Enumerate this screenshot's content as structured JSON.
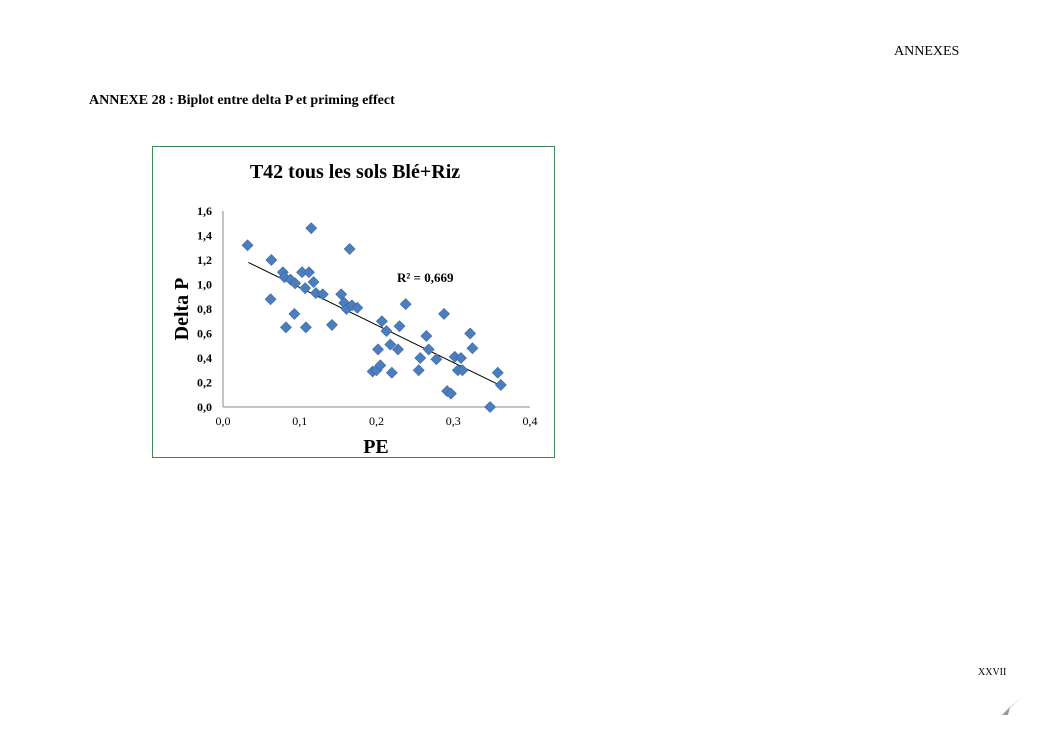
{
  "page": {
    "header": "ANNEXES",
    "annex_title": "ANNEXE 28 : Biplot entre delta P et priming effect",
    "page_number": "XXVII"
  },
  "colors": {
    "frame": "#3d8a58",
    "marker": "#4a7ebf",
    "trendline": "#000000"
  },
  "chart_data": {
    "type": "scatter",
    "title": "T42 tous les sols Blé+Riz",
    "xlabel": "PE",
    "ylabel": "Delta P",
    "xlim": [
      0,
      0.4
    ],
    "ylim": [
      0,
      1.6
    ],
    "xticks": [
      "0,0",
      "0,1",
      "0,2",
      "0,3",
      "0,4"
    ],
    "yticks": [
      "0,0",
      "0,2",
      "0,4",
      "0,6",
      "0,8",
      "1,0",
      "1,2",
      "1,4",
      "1,6"
    ],
    "annotation": "R² = 0,669",
    "trendline": {
      "x": [
        0.033,
        0.36
      ],
      "y": [
        1.18,
        0.18
      ]
    },
    "points": [
      {
        "x": 0.032,
        "y": 1.32
      },
      {
        "x": 0.063,
        "y": 1.2
      },
      {
        "x": 0.062,
        "y": 0.88
      },
      {
        "x": 0.078,
        "y": 1.1
      },
      {
        "x": 0.08,
        "y": 1.06
      },
      {
        "x": 0.082,
        "y": 0.65
      },
      {
        "x": 0.088,
        "y": 1.04
      },
      {
        "x": 0.094,
        "y": 1.01
      },
      {
        "x": 0.093,
        "y": 0.76
      },
      {
        "x": 0.103,
        "y": 1.1
      },
      {
        "x": 0.107,
        "y": 0.97
      },
      {
        "x": 0.108,
        "y": 0.65
      },
      {
        "x": 0.112,
        "y": 1.1
      },
      {
        "x": 0.115,
        "y": 1.46
      },
      {
        "x": 0.118,
        "y": 1.02
      },
      {
        "x": 0.121,
        "y": 0.93
      },
      {
        "x": 0.13,
        "y": 0.92
      },
      {
        "x": 0.142,
        "y": 0.67
      },
      {
        "x": 0.154,
        "y": 0.92
      },
      {
        "x": 0.158,
        "y": 0.85
      },
      {
        "x": 0.161,
        "y": 0.8
      },
      {
        "x": 0.165,
        "y": 1.29
      },
      {
        "x": 0.168,
        "y": 0.83
      },
      {
        "x": 0.175,
        "y": 0.81
      },
      {
        "x": 0.195,
        "y": 0.29
      },
      {
        "x": 0.2,
        "y": 0.3
      },
      {
        "x": 0.202,
        "y": 0.47
      },
      {
        "x": 0.205,
        "y": 0.34
      },
      {
        "x": 0.207,
        "y": 0.7
      },
      {
        "x": 0.213,
        "y": 0.62
      },
      {
        "x": 0.218,
        "y": 0.51
      },
      {
        "x": 0.22,
        "y": 0.28
      },
      {
        "x": 0.228,
        "y": 0.47
      },
      {
        "x": 0.23,
        "y": 0.66
      },
      {
        "x": 0.238,
        "y": 0.84
      },
      {
        "x": 0.255,
        "y": 0.3
      },
      {
        "x": 0.257,
        "y": 0.4
      },
      {
        "x": 0.265,
        "y": 0.58
      },
      {
        "x": 0.268,
        "y": 0.47
      },
      {
        "x": 0.278,
        "y": 0.39
      },
      {
        "x": 0.288,
        "y": 0.76
      },
      {
        "x": 0.292,
        "y": 0.13
      },
      {
        "x": 0.297,
        "y": 0.11
      },
      {
        "x": 0.302,
        "y": 0.41
      },
      {
        "x": 0.306,
        "y": 0.3
      },
      {
        "x": 0.31,
        "y": 0.4
      },
      {
        "x": 0.312,
        "y": 0.3
      },
      {
        "x": 0.322,
        "y": 0.6
      },
      {
        "x": 0.325,
        "y": 0.48
      },
      {
        "x": 0.348,
        "y": 0.0
      },
      {
        "x": 0.358,
        "y": 0.28
      },
      {
        "x": 0.362,
        "y": 0.18
      }
    ]
  }
}
